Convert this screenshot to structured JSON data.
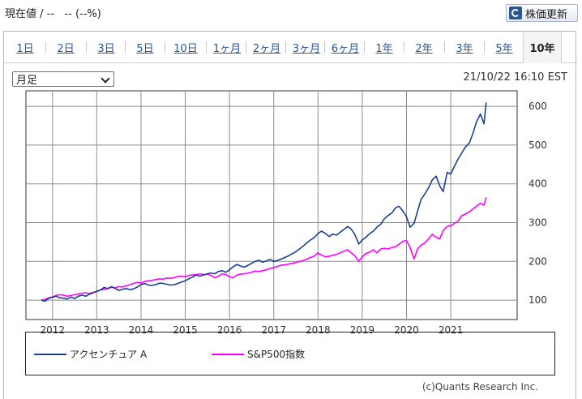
{
  "header": {
    "price_text": "現在値 / --   -- (--%)",
    "refresh_label": "株価更新"
  },
  "tabs": [
    {
      "label": "1日",
      "active": false
    },
    {
      "label": "2日",
      "active": false
    },
    {
      "label": "3日",
      "active": false
    },
    {
      "label": "5日",
      "active": false
    },
    {
      "label": "10日",
      "active": false
    },
    {
      "label": "1ヶ月",
      "active": false
    },
    {
      "label": "2ヶ月",
      "active": false
    },
    {
      "label": "3ヶ月",
      "active": false
    },
    {
      "label": "6ヶ月",
      "active": false
    },
    {
      "label": "1年",
      "active": false
    },
    {
      "label": "2年",
      "active": false
    },
    {
      "label": "3年",
      "active": false
    },
    {
      "label": "5年",
      "active": false
    },
    {
      "label": "10年",
      "active": true
    }
  ],
  "controls": {
    "period_selected": "月足",
    "timestamp": "21/10/22 16:10 EST"
  },
  "footer": {
    "copyright": "(c)Quants Research Inc."
  },
  "colors": {
    "accenture": "#1a3f94",
    "sp500": "#ff00ff",
    "tab_link": "#2a5796"
  },
  "chart_data": {
    "type": "line",
    "x_ticks": [
      "2012",
      "2013",
      "2014",
      "2015",
      "2016",
      "2017",
      "2018",
      "2019",
      "2020",
      "2021"
    ],
    "x_range": [
      2011.4,
      2022.5
    ],
    "y_range": [
      50,
      640
    ],
    "y_ticks": [
      100,
      200,
      300,
      400,
      500,
      600
    ],
    "grid": true,
    "legend_position": "bottom",
    "series": [
      {
        "name": "アクセンチュア A",
        "color": "#1a3f94",
        "points": [
          [
            2011.75,
            100
          ],
          [
            2011.83,
            97
          ],
          [
            2011.92,
            105
          ],
          [
            2012.0,
            108
          ],
          [
            2012.08,
            110
          ],
          [
            2012.17,
            106
          ],
          [
            2012.25,
            105
          ],
          [
            2012.33,
            103
          ],
          [
            2012.42,
            108
          ],
          [
            2012.5,
            104
          ],
          [
            2012.58,
            110
          ],
          [
            2012.67,
            113
          ],
          [
            2012.75,
            110
          ],
          [
            2012.83,
            115
          ],
          [
            2012.92,
            119
          ],
          [
            2013.0,
            123
          ],
          [
            2013.08,
            126
          ],
          [
            2013.17,
            133
          ],
          [
            2013.25,
            129
          ],
          [
            2013.33,
            135
          ],
          [
            2013.42,
            130
          ],
          [
            2013.5,
            125
          ],
          [
            2013.58,
            128
          ],
          [
            2013.67,
            130
          ],
          [
            2013.75,
            127
          ],
          [
            2013.83,
            129
          ],
          [
            2013.92,
            134
          ],
          [
            2014.0,
            140
          ],
          [
            2014.08,
            143
          ],
          [
            2014.17,
            139
          ],
          [
            2014.25,
            138
          ],
          [
            2014.33,
            140
          ],
          [
            2014.42,
            144
          ],
          [
            2014.5,
            143
          ],
          [
            2014.58,
            141
          ],
          [
            2014.67,
            139
          ],
          [
            2014.75,
            140
          ],
          [
            2014.83,
            143
          ],
          [
            2014.92,
            147
          ],
          [
            2015.0,
            150
          ],
          [
            2015.08,
            155
          ],
          [
            2015.17,
            160
          ],
          [
            2015.25,
            165
          ],
          [
            2015.33,
            162
          ],
          [
            2015.42,
            165
          ],
          [
            2015.5,
            168
          ],
          [
            2015.58,
            170
          ],
          [
            2015.67,
            168
          ],
          [
            2015.75,
            174
          ],
          [
            2015.83,
            176
          ],
          [
            2015.92,
            172
          ],
          [
            2016.0,
            178
          ],
          [
            2016.08,
            186
          ],
          [
            2016.17,
            192
          ],
          [
            2016.25,
            188
          ],
          [
            2016.33,
            185
          ],
          [
            2016.42,
            190
          ],
          [
            2016.5,
            195
          ],
          [
            2016.58,
            200
          ],
          [
            2016.67,
            203
          ],
          [
            2016.75,
            198
          ],
          [
            2016.83,
            201
          ],
          [
            2016.92,
            205
          ],
          [
            2017.0,
            200
          ],
          [
            2017.08,
            202
          ],
          [
            2017.17,
            206
          ],
          [
            2017.25,
            210
          ],
          [
            2017.33,
            214
          ],
          [
            2017.42,
            220
          ],
          [
            2017.5,
            225
          ],
          [
            2017.58,
            232
          ],
          [
            2017.67,
            240
          ],
          [
            2017.75,
            248
          ],
          [
            2017.83,
            255
          ],
          [
            2017.92,
            262
          ],
          [
            2018.0,
            272
          ],
          [
            2018.08,
            278
          ],
          [
            2018.17,
            272
          ],
          [
            2018.25,
            264
          ],
          [
            2018.33,
            270
          ],
          [
            2018.42,
            268
          ],
          [
            2018.5,
            275
          ],
          [
            2018.58,
            282
          ],
          [
            2018.67,
            290
          ],
          [
            2018.75,
            283
          ],
          [
            2018.83,
            270
          ],
          [
            2018.92,
            245
          ],
          [
            2019.0,
            255
          ],
          [
            2019.08,
            262
          ],
          [
            2019.17,
            272
          ],
          [
            2019.25,
            278
          ],
          [
            2019.33,
            288
          ],
          [
            2019.42,
            296
          ],
          [
            2019.5,
            310
          ],
          [
            2019.58,
            318
          ],
          [
            2019.67,
            325
          ],
          [
            2019.75,
            338
          ],
          [
            2019.83,
            342
          ],
          [
            2019.92,
            330
          ],
          [
            2020.0,
            315
          ],
          [
            2020.08,
            288
          ],
          [
            2020.17,
            298
          ],
          [
            2020.25,
            330
          ],
          [
            2020.33,
            360
          ],
          [
            2020.42,
            375
          ],
          [
            2020.5,
            390
          ],
          [
            2020.58,
            410
          ],
          [
            2020.67,
            420
          ],
          [
            2020.75,
            395
          ],
          [
            2020.83,
            380
          ],
          [
            2020.92,
            430
          ],
          [
            2021.0,
            425
          ],
          [
            2021.08,
            445
          ],
          [
            2021.17,
            465
          ],
          [
            2021.25,
            480
          ],
          [
            2021.33,
            495
          ],
          [
            2021.42,
            505
          ],
          [
            2021.5,
            530
          ],
          [
            2021.58,
            560
          ],
          [
            2021.67,
            580
          ],
          [
            2021.75,
            555
          ],
          [
            2021.8,
            610
          ]
        ]
      },
      {
        "name": "S&P500指数",
        "color": "#ff00ff",
        "points": [
          [
            2011.75,
            100
          ],
          [
            2011.83,
            102
          ],
          [
            2011.92,
            106
          ],
          [
            2012.0,
            108
          ],
          [
            2012.08,
            112
          ],
          [
            2012.17,
            114
          ],
          [
            2012.25,
            113
          ],
          [
            2012.33,
            110
          ],
          [
            2012.42,
            112
          ],
          [
            2012.5,
            114
          ],
          [
            2012.58,
            116
          ],
          [
            2012.67,
            118
          ],
          [
            2012.75,
            119
          ],
          [
            2012.83,
            117
          ],
          [
            2012.92,
            120
          ],
          [
            2013.0,
            122
          ],
          [
            2013.08,
            126
          ],
          [
            2013.17,
            128
          ],
          [
            2013.25,
            131
          ],
          [
            2013.33,
            133
          ],
          [
            2013.42,
            132
          ],
          [
            2013.5,
            135
          ],
          [
            2013.58,
            134
          ],
          [
            2013.67,
            137
          ],
          [
            2013.75,
            140
          ],
          [
            2013.83,
            143
          ],
          [
            2013.92,
            146
          ],
          [
            2014.0,
            144
          ],
          [
            2014.08,
            148
          ],
          [
            2014.17,
            150
          ],
          [
            2014.25,
            151
          ],
          [
            2014.33,
            153
          ],
          [
            2014.42,
            155
          ],
          [
            2014.5,
            154
          ],
          [
            2014.58,
            157
          ],
          [
            2014.67,
            156
          ],
          [
            2014.75,
            158
          ],
          [
            2014.83,
            161
          ],
          [
            2014.92,
            162
          ],
          [
            2015.0,
            160
          ],
          [
            2015.08,
            164
          ],
          [
            2015.17,
            165
          ],
          [
            2015.25,
            166
          ],
          [
            2015.33,
            168
          ],
          [
            2015.42,
            166
          ],
          [
            2015.5,
            167
          ],
          [
            2015.58,
            164
          ],
          [
            2015.67,
            158
          ],
          [
            2015.75,
            162
          ],
          [
            2015.83,
            168
          ],
          [
            2015.92,
            166
          ],
          [
            2016.0,
            160
          ],
          [
            2016.08,
            158
          ],
          [
            2016.17,
            165
          ],
          [
            2016.25,
            167
          ],
          [
            2016.33,
            168
          ],
          [
            2016.42,
            170
          ],
          [
            2016.5,
            172
          ],
          [
            2016.58,
            175
          ],
          [
            2016.67,
            174
          ],
          [
            2016.75,
            176
          ],
          [
            2016.83,
            178
          ],
          [
            2016.92,
            182
          ],
          [
            2017.0,
            184
          ],
          [
            2017.08,
            187
          ],
          [
            2017.17,
            190
          ],
          [
            2017.25,
            191
          ],
          [
            2017.33,
            193
          ],
          [
            2017.42,
            195
          ],
          [
            2017.5,
            197
          ],
          [
            2017.58,
            200
          ],
          [
            2017.67,
            202
          ],
          [
            2017.75,
            206
          ],
          [
            2017.83,
            210
          ],
          [
            2017.92,
            214
          ],
          [
            2018.0,
            222
          ],
          [
            2018.08,
            216
          ],
          [
            2018.17,
            212
          ],
          [
            2018.25,
            213
          ],
          [
            2018.33,
            216
          ],
          [
            2018.42,
            218
          ],
          [
            2018.5,
            222
          ],
          [
            2018.58,
            226
          ],
          [
            2018.67,
            230
          ],
          [
            2018.75,
            222
          ],
          [
            2018.83,
            215
          ],
          [
            2018.92,
            200
          ],
          [
            2019.0,
            212
          ],
          [
            2019.08,
            220
          ],
          [
            2019.17,
            224
          ],
          [
            2019.25,
            230
          ],
          [
            2019.33,
            222
          ],
          [
            2019.42,
            232
          ],
          [
            2019.5,
            234
          ],
          [
            2019.58,
            232
          ],
          [
            2019.67,
            236
          ],
          [
            2019.75,
            238
          ],
          [
            2019.83,
            244
          ],
          [
            2019.92,
            252
          ],
          [
            2020.0,
            254
          ],
          [
            2020.08,
            236
          ],
          [
            2020.17,
            206
          ],
          [
            2020.25,
            232
          ],
          [
            2020.33,
            242
          ],
          [
            2020.42,
            248
          ],
          [
            2020.5,
            258
          ],
          [
            2020.58,
            270
          ],
          [
            2020.67,
            262
          ],
          [
            2020.75,
            258
          ],
          [
            2020.83,
            280
          ],
          [
            2020.92,
            290
          ],
          [
            2021.0,
            292
          ],
          [
            2021.08,
            298
          ],
          [
            2021.17,
            305
          ],
          [
            2021.25,
            318
          ],
          [
            2021.33,
            322
          ],
          [
            2021.42,
            328
          ],
          [
            2021.5,
            335
          ],
          [
            2021.58,
            342
          ],
          [
            2021.67,
            350
          ],
          [
            2021.75,
            345
          ],
          [
            2021.8,
            365
          ]
        ]
      }
    ]
  }
}
